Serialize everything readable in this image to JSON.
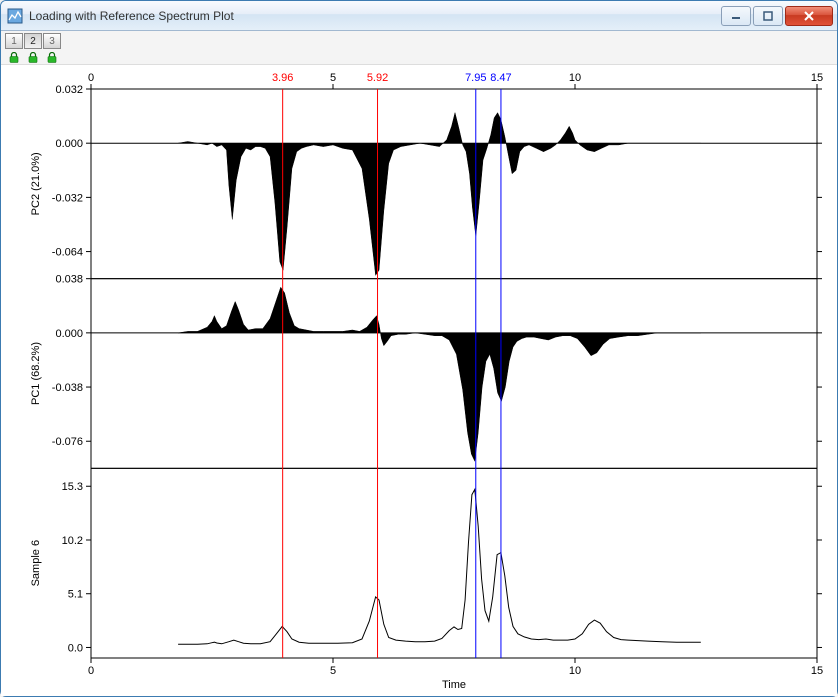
{
  "window": {
    "title": "Loading with Reference Spectrum Plot"
  },
  "toolbar": {
    "num_buttons": [
      "1",
      "2",
      "3"
    ],
    "active_index": 1,
    "lock_count": 3,
    "lock_color": "#2ab82a"
  },
  "chart": {
    "x_axis": {
      "label": "Time",
      "min": 0,
      "max": 15,
      "ticks": [
        0,
        5,
        10,
        15
      ]
    },
    "markers": [
      {
        "x": 3.96,
        "label": "3.96",
        "color": "#ff0000"
      },
      {
        "x": 5.92,
        "label": "5.92",
        "color": "#ff0000"
      },
      {
        "x": 7.95,
        "label": "7.95",
        "color": "#0000ff"
      },
      {
        "x": 8.47,
        "label": "8.47",
        "color": "#0000ff"
      }
    ],
    "panels": [
      {
        "ylabel": "PC2 (21.0%)",
        "ymin": -0.08,
        "ymax": 0.032,
        "yticks": [
          -0.064,
          -0.032,
          0.0,
          0.032
        ],
        "zero_line": 0.0,
        "fill": true,
        "series": [
          [
            1.8,
            0
          ],
          [
            2.0,
            0.001
          ],
          [
            2.2,
            0
          ],
          [
            2.4,
            -0.001
          ],
          [
            2.5,
            0
          ],
          [
            2.6,
            -0.002
          ],
          [
            2.7,
            -0.001
          ],
          [
            2.8,
            -0.004
          ],
          [
            2.85,
            -0.025
          ],
          [
            2.92,
            -0.045
          ],
          [
            3.0,
            -0.022
          ],
          [
            3.1,
            -0.008
          ],
          [
            3.2,
            -0.003
          ],
          [
            3.3,
            -0.004
          ],
          [
            3.4,
            -0.002
          ],
          [
            3.5,
            -0.002
          ],
          [
            3.6,
            -0.003
          ],
          [
            3.7,
            -0.008
          ],
          [
            3.8,
            -0.035
          ],
          [
            3.9,
            -0.07
          ],
          [
            3.97,
            -0.075
          ],
          [
            4.05,
            -0.05
          ],
          [
            4.15,
            -0.015
          ],
          [
            4.25,
            -0.005
          ],
          [
            4.35,
            -0.003
          ],
          [
            4.45,
            -0.002
          ],
          [
            4.6,
            -0.001
          ],
          [
            4.8,
            -0.002
          ],
          [
            5.0,
            -0.001
          ],
          [
            5.2,
            -0.003
          ],
          [
            5.4,
            -0.004
          ],
          [
            5.6,
            -0.015
          ],
          [
            5.75,
            -0.045
          ],
          [
            5.88,
            -0.078
          ],
          [
            5.95,
            -0.075
          ],
          [
            6.05,
            -0.04
          ],
          [
            6.15,
            -0.012
          ],
          [
            6.25,
            -0.004
          ],
          [
            6.4,
            -0.002
          ],
          [
            6.6,
            -0.001
          ],
          [
            6.8,
            0
          ],
          [
            7.0,
            -0.001
          ],
          [
            7.2,
            -0.002
          ],
          [
            7.35,
            0.002
          ],
          [
            7.45,
            0.01
          ],
          [
            7.52,
            0.018
          ],
          [
            7.6,
            0.009
          ],
          [
            7.68,
            -0.001
          ],
          [
            7.75,
            -0.005
          ],
          [
            7.82,
            -0.018
          ],
          [
            7.88,
            -0.038
          ],
          [
            7.95,
            -0.055
          ],
          [
            8.02,
            -0.035
          ],
          [
            8.1,
            -0.01
          ],
          [
            8.18,
            -0.003
          ],
          [
            8.26,
            0.005
          ],
          [
            8.33,
            0.015
          ],
          [
            8.4,
            0.018
          ],
          [
            8.47,
            0.014
          ],
          [
            8.55,
            0.004
          ],
          [
            8.63,
            -0.008
          ],
          [
            8.7,
            -0.018
          ],
          [
            8.78,
            -0.016
          ],
          [
            8.86,
            -0.005
          ],
          [
            8.95,
            -0.002
          ],
          [
            9.05,
            -0.001
          ],
          [
            9.2,
            -0.003
          ],
          [
            9.35,
            -0.005
          ],
          [
            9.5,
            -0.003
          ],
          [
            9.6,
            -0.001
          ],
          [
            9.7,
            0.002
          ],
          [
            9.8,
            0.006
          ],
          [
            9.88,
            0.01
          ],
          [
            9.95,
            0.006
          ],
          [
            10.0,
            0.002
          ],
          [
            10.1,
            -0.001
          ],
          [
            10.25,
            -0.004
          ],
          [
            10.4,
            -0.005
          ],
          [
            10.55,
            -0.003
          ],
          [
            10.7,
            -0.001
          ],
          [
            10.9,
            -0.001
          ],
          [
            11.1,
            0
          ],
          [
            11.4,
            0
          ],
          [
            11.8,
            0
          ],
          [
            12.2,
            0
          ],
          [
            12.6,
            0
          ]
        ]
      },
      {
        "ylabel": "PC1 (68.2%)",
        "ymin": -0.095,
        "ymax": 0.038,
        "yticks": [
          -0.076,
          -0.038,
          0.0,
          0.038
        ],
        "zero_line": 0.0,
        "fill": true,
        "series": [
          [
            1.8,
            0
          ],
          [
            2.0,
            0.001
          ],
          [
            2.2,
            0.001
          ],
          [
            2.4,
            0.004
          ],
          [
            2.5,
            0.008
          ],
          [
            2.55,
            0.012
          ],
          [
            2.6,
            0.008
          ],
          [
            2.7,
            0.003
          ],
          [
            2.8,
            0.005
          ],
          [
            2.9,
            0.015
          ],
          [
            2.98,
            0.022
          ],
          [
            3.05,
            0.016
          ],
          [
            3.15,
            0.006
          ],
          [
            3.25,
            0.002
          ],
          [
            3.4,
            0.003
          ],
          [
            3.55,
            0.003
          ],
          [
            3.7,
            0.01
          ],
          [
            3.82,
            0.022
          ],
          [
            3.92,
            0.032
          ],
          [
            4.0,
            0.028
          ],
          [
            4.1,
            0.014
          ],
          [
            4.2,
            0.005
          ],
          [
            4.3,
            0.003
          ],
          [
            4.45,
            0.002
          ],
          [
            4.6,
            0.001
          ],
          [
            4.8,
            0.001
          ],
          [
            5.0,
            0.001
          ],
          [
            5.2,
            0.001
          ],
          [
            5.4,
            0.002
          ],
          [
            5.55,
            0.001
          ],
          [
            5.7,
            0.004
          ],
          [
            5.82,
            0.009
          ],
          [
            5.9,
            0.012
          ],
          [
            5.95,
            0.006
          ],
          [
            6.0,
            -0.004
          ],
          [
            6.05,
            -0.009
          ],
          [
            6.12,
            -0.006
          ],
          [
            6.2,
            -0.002
          ],
          [
            6.35,
            -0.001
          ],
          [
            6.5,
            -0.001
          ],
          [
            6.7,
            0
          ],
          [
            6.9,
            -0.001
          ],
          [
            7.1,
            -0.002
          ],
          [
            7.25,
            -0.002
          ],
          [
            7.4,
            -0.005
          ],
          [
            7.55,
            -0.015
          ],
          [
            7.68,
            -0.04
          ],
          [
            7.78,
            -0.07
          ],
          [
            7.86,
            -0.085
          ],
          [
            7.93,
            -0.09
          ],
          [
            8.0,
            -0.07
          ],
          [
            8.08,
            -0.038
          ],
          [
            8.16,
            -0.02
          ],
          [
            8.24,
            -0.015
          ],
          [
            8.32,
            -0.025
          ],
          [
            8.4,
            -0.042
          ],
          [
            8.48,
            -0.048
          ],
          [
            8.56,
            -0.038
          ],
          [
            8.64,
            -0.02
          ],
          [
            8.72,
            -0.01
          ],
          [
            8.8,
            -0.006
          ],
          [
            8.9,
            -0.004
          ],
          [
            9.0,
            -0.003
          ],
          [
            9.15,
            -0.003
          ],
          [
            9.3,
            -0.004
          ],
          [
            9.45,
            -0.005
          ],
          [
            9.6,
            -0.003
          ],
          [
            9.75,
            -0.002
          ],
          [
            9.9,
            -0.002
          ],
          [
            10.05,
            -0.004
          ],
          [
            10.2,
            -0.01
          ],
          [
            10.33,
            -0.016
          ],
          [
            10.45,
            -0.014
          ],
          [
            10.58,
            -0.008
          ],
          [
            10.72,
            -0.004
          ],
          [
            10.9,
            -0.003
          ],
          [
            11.1,
            -0.002
          ],
          [
            11.3,
            -0.002
          ],
          [
            11.5,
            -0.001
          ],
          [
            11.7,
            0
          ],
          [
            12.0,
            0
          ],
          [
            12.3,
            0
          ],
          [
            12.6,
            0
          ]
        ]
      },
      {
        "ylabel": "Sample 6",
        "ymin": -1.0,
        "ymax": 17,
        "yticks": [
          0.0,
          5.1,
          10.2,
          15.3
        ],
        "fill": false,
        "series": [
          [
            1.8,
            0.3
          ],
          [
            2.0,
            0.3
          ],
          [
            2.2,
            0.3
          ],
          [
            2.4,
            0.35
          ],
          [
            2.5,
            0.45
          ],
          [
            2.55,
            0.5
          ],
          [
            2.6,
            0.42
          ],
          [
            2.7,
            0.35
          ],
          [
            2.85,
            0.55
          ],
          [
            2.95,
            0.7
          ],
          [
            3.05,
            0.55
          ],
          [
            3.15,
            0.4
          ],
          [
            3.3,
            0.35
          ],
          [
            3.5,
            0.35
          ],
          [
            3.7,
            0.55
          ],
          [
            3.85,
            1.4
          ],
          [
            3.95,
            2.0
          ],
          [
            4.05,
            1.5
          ],
          [
            4.15,
            0.8
          ],
          [
            4.3,
            0.5
          ],
          [
            4.5,
            0.4
          ],
          [
            4.8,
            0.4
          ],
          [
            5.1,
            0.4
          ],
          [
            5.4,
            0.45
          ],
          [
            5.6,
            0.8
          ],
          [
            5.75,
            2.5
          ],
          [
            5.88,
            4.8
          ],
          [
            5.95,
            4.5
          ],
          [
            6.05,
            2.2
          ],
          [
            6.15,
            0.95
          ],
          [
            6.3,
            0.7
          ],
          [
            6.5,
            0.6
          ],
          [
            6.7,
            0.55
          ],
          [
            6.9,
            0.55
          ],
          [
            7.1,
            0.6
          ],
          [
            7.25,
            0.85
          ],
          [
            7.4,
            1.6
          ],
          [
            7.5,
            1.95
          ],
          [
            7.58,
            1.7
          ],
          [
            7.66,
            1.8
          ],
          [
            7.73,
            4.5
          ],
          [
            7.8,
            10.0
          ],
          [
            7.87,
            14.5
          ],
          [
            7.93,
            15.0
          ],
          [
            8.0,
            11.5
          ],
          [
            8.07,
            6.5
          ],
          [
            8.14,
            3.5
          ],
          [
            8.22,
            2.5
          ],
          [
            8.3,
            4.8
          ],
          [
            8.39,
            8.8
          ],
          [
            8.47,
            9.0
          ],
          [
            8.55,
            6.8
          ],
          [
            8.63,
            3.8
          ],
          [
            8.72,
            2.0
          ],
          [
            8.82,
            1.3
          ],
          [
            8.95,
            1.0
          ],
          [
            9.1,
            0.8
          ],
          [
            9.25,
            0.75
          ],
          [
            9.4,
            0.8
          ],
          [
            9.55,
            0.7
          ],
          [
            9.7,
            0.7
          ],
          [
            9.85,
            0.7
          ],
          [
            10.0,
            0.8
          ],
          [
            10.15,
            1.3
          ],
          [
            10.28,
            2.2
          ],
          [
            10.4,
            2.6
          ],
          [
            10.52,
            2.3
          ],
          [
            10.65,
            1.5
          ],
          [
            10.8,
            0.95
          ],
          [
            10.95,
            0.75
          ],
          [
            11.1,
            0.7
          ],
          [
            11.3,
            0.65
          ],
          [
            11.5,
            0.6
          ],
          [
            11.8,
            0.55
          ],
          [
            12.1,
            0.5
          ],
          [
            12.4,
            0.5
          ],
          [
            12.6,
            0.5
          ]
        ]
      }
    ]
  },
  "colors": {
    "window_frame": "#3c7bb1",
    "panel_bg": "#ffffff",
    "axis": "#000000",
    "trace": "#000000"
  }
}
